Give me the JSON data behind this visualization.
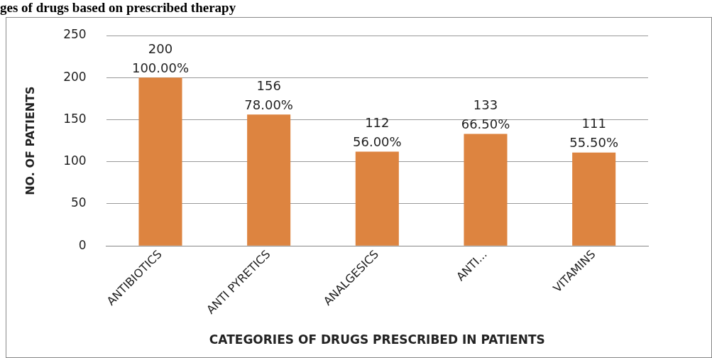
{
  "chart_data": {
    "type": "bar",
    "title": "ges of drugs based on prescribed therapy",
    "xlabel": "CATEGORIES OF DRUGS PRESCRIBED IN PATIENTS",
    "ylabel": "NO. OF PATIENTS",
    "categories": [
      "ANTIBIOTICS",
      "ANTI PYRETICS",
      "ANALGESICS",
      "ANTI...",
      "VITAMINS"
    ],
    "values": [
      200,
      156,
      112,
      133,
      111
    ],
    "data_labels": true,
    "annotations": [
      {
        "text": "100.00%",
        "x": "ANTIBIOTICS",
        "y": 200
      },
      {
        "text": "78.00%",
        "x": "ANTI PYRETICS",
        "y": 156
      },
      {
        "text": "56.00%",
        "x": "ANALGESICS",
        "y": 112
      },
      {
        "text": "66.50%",
        "x": "ANTI...",
        "y": 133
      },
      {
        "text": "55.50%",
        "x": "VITAMINS",
        "y": 111
      }
    ],
    "color": "#dd8440",
    "ylim": [
      0,
      250
    ],
    "yticks": [
      0,
      50,
      100,
      150,
      200,
      250
    ],
    "grid": "y"
  }
}
